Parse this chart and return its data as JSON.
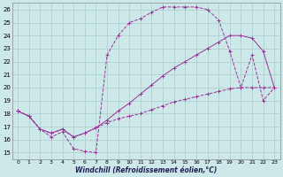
{
  "bg_color": "#cce8e8",
  "grid_color": "#aacccc",
  "line_color": "#993399",
  "xlabel": "Windchill (Refroidissement éolien,°C)",
  "ylabel_ticks": [
    15,
    16,
    17,
    18,
    19,
    20,
    21,
    22,
    23,
    24,
    25,
    26
  ],
  "xlabel_ticks": [
    0,
    1,
    2,
    3,
    4,
    5,
    6,
    7,
    8,
    9,
    10,
    11,
    12,
    13,
    14,
    15,
    16,
    17,
    18,
    19,
    20,
    21,
    22,
    23
  ],
  "xlim": [
    -0.5,
    23.5
  ],
  "ylim": [
    14.5,
    26.5
  ],
  "curve1_x": [
    0,
    1,
    2,
    3,
    4,
    5,
    6,
    7,
    8,
    9,
    10,
    11,
    12,
    13,
    14,
    15,
    16,
    17,
    18,
    19,
    20,
    21,
    22,
    23
  ],
  "curve1_y": [
    18.2,
    17.8,
    16.8,
    16.2,
    16.6,
    15.3,
    15.1,
    15.0,
    22.5,
    24.0,
    25.0,
    25.3,
    25.8,
    26.2,
    26.2,
    26.2,
    26.2,
    26.0,
    25.2,
    22.8,
    20.0,
    22.5,
    19.0,
    20.0
  ],
  "curve1_style": "--",
  "curve2_x": [
    0,
    1,
    2,
    3,
    4,
    5,
    6,
    7,
    8,
    9,
    10,
    11,
    12,
    13,
    14,
    15,
    16,
    17,
    18,
    19,
    20,
    21,
    22,
    23
  ],
  "curve2_y": [
    18.2,
    17.8,
    16.8,
    16.5,
    16.8,
    16.2,
    16.5,
    16.9,
    17.5,
    18.2,
    18.8,
    19.5,
    20.2,
    20.9,
    21.5,
    22.0,
    22.5,
    23.0,
    23.5,
    24.0,
    24.0,
    23.8,
    22.8,
    20.0
  ],
  "curve2_style": "-",
  "curve3_x": [
    0,
    1,
    2,
    3,
    4,
    5,
    6,
    7,
    8,
    9,
    10,
    11,
    12,
    13,
    14,
    15,
    16,
    17,
    18,
    19,
    20,
    21,
    22,
    23
  ],
  "curve3_y": [
    18.2,
    17.8,
    16.8,
    16.5,
    16.8,
    16.2,
    16.5,
    16.9,
    17.3,
    17.6,
    17.8,
    18.0,
    18.3,
    18.6,
    18.9,
    19.1,
    19.3,
    19.5,
    19.7,
    19.9,
    20.0,
    20.0,
    20.0,
    20.0
  ],
  "curve3_style": "--"
}
